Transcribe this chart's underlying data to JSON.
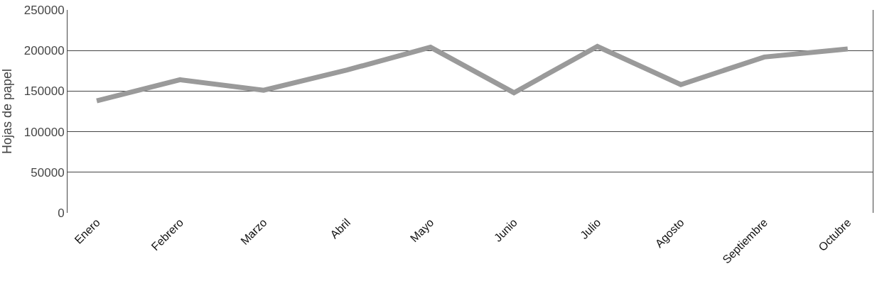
{
  "chart_data": {
    "type": "line",
    "ylabel": "Hojas de papel",
    "categories": [
      "Enero",
      "Febrero",
      "Marzo",
      "Abril",
      "Mayo",
      "Junio",
      "Julio",
      "Agosto",
      "Septiembre",
      "Octubre"
    ],
    "series": [
      {
        "color": "#9a9a9a",
        "values": [
          138000,
          164000,
          151000,
          176000,
          204000,
          148000,
          205000,
          158000,
          192000,
          202000
        ]
      }
    ],
    "ylim": [
      0,
      250000
    ],
    "yticks": [
      0,
      50000,
      100000,
      150000,
      200000,
      250000
    ],
    "grid": "y",
    "marker": "none",
    "line_style": "solid"
  }
}
